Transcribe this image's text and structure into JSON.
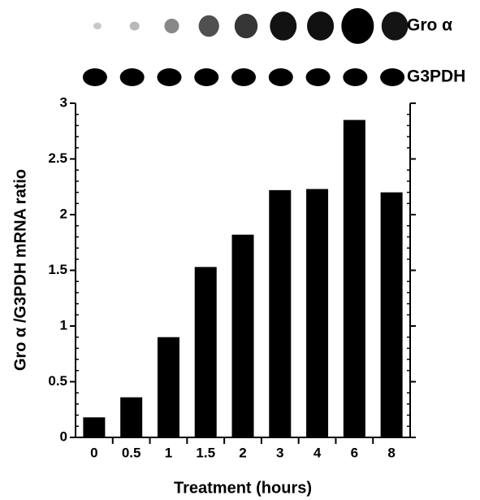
{
  "chart_data": {
    "type": "bar",
    "x_label": "Treatment (hours)",
    "y_label": "Gro α /G3PDH mRNA ratio",
    "blot_labels": [
      "Gro α",
      "G3PDH"
    ],
    "categories": [
      "0",
      "0.5",
      "1",
      "1.5",
      "2",
      "3",
      "4",
      "6",
      "8"
    ],
    "values": [
      0.18,
      0.36,
      0.9,
      1.53,
      1.82,
      2.22,
      2.23,
      2.85,
      2.2
    ],
    "color": "#000000",
    "ylim": [
      0,
      3
    ],
    "yticks": [
      0,
      0.5,
      1,
      1.5,
      2,
      2.5,
      3
    ],
    "grid": false
  }
}
